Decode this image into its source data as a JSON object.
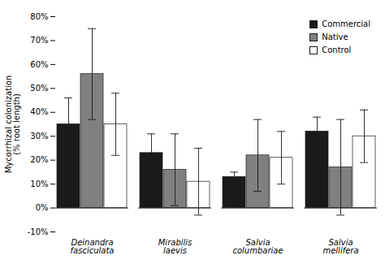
{
  "chart_data": {
    "type": "bar",
    "categories": [
      "Deinandra\nfasciculata",
      "Mirabilis\nlaevis",
      "Salvia\ncolumbariae",
      "Salvia\nmellifera"
    ],
    "series": [
      {
        "name": "Commercial",
        "color": "#1a1a1a",
        "values": [
          35,
          23,
          13,
          32
        ],
        "errors": [
          11,
          8,
          2,
          6
        ]
      },
      {
        "name": "Native",
        "color": "#808080",
        "values": [
          56,
          16,
          22,
          17
        ],
        "errors": [
          19,
          15,
          15,
          20
        ]
      },
      {
        "name": "Control",
        "color": "#ffffff",
        "values": [
          35,
          11,
          21,
          30
        ],
        "errors": [
          13,
          14,
          11,
          11
        ]
      }
    ],
    "ylabel": "Mycorrhizal colonization\n(% root length)",
    "ylim": [
      -10,
      80
    ],
    "yticks": [
      {
        "value": -10,
        "label": "-10%"
      },
      {
        "value": 0,
        "label": "0%"
      },
      {
        "value": 10,
        "label": "10%"
      },
      {
        "value": 20,
        "label": "20%"
      },
      {
        "value": 30,
        "label": "30%"
      },
      {
        "value": 40,
        "label": "40%"
      },
      {
        "value": 50,
        "label": "50%"
      },
      {
        "value": 60,
        "label": "60%"
      },
      {
        "value": 70,
        "label": "70%"
      },
      {
        "value": 80,
        "label": "80%"
      }
    ],
    "legend": "upper right"
  }
}
